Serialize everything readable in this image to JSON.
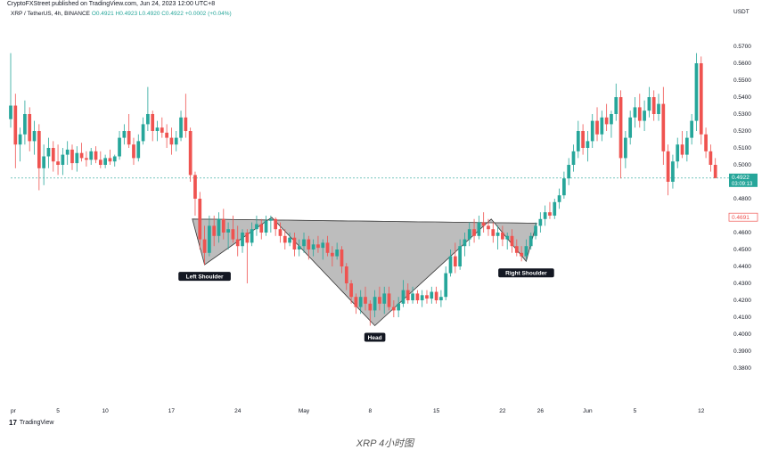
{
  "header": {
    "published": "CryptoFXStreet published on TradingView.com, Jun 24, 2023 12:00 UTC+8",
    "symbol": "XRP / TetherUS, 4h, BINANCE",
    "ohlc": "O0.4921 H0.4923 L0.4920 C0.4922 +0.0002 (+0.04%)",
    "currency": "USDT"
  },
  "brand": {
    "logo": "17",
    "name": "TradingView"
  },
  "caption": "XRP 4小时图",
  "colors": {
    "up": "#26a69a",
    "down": "#ef5350",
    "pattern_fill": "#b2b2b2",
    "neckline": "#555555"
  },
  "chart_data": {
    "type": "candlestick",
    "title": "XRP / TetherUS, 4h, BINANCE",
    "ylabel": "USDT",
    "ylim": [
      0.36,
      0.58
    ],
    "y_ticks": [
      "0.5700",
      "0.5600",
      "0.5500",
      "0.5400",
      "0.5300",
      "0.5200",
      "0.5100",
      "0.5000",
      "0.4800",
      "0.4700",
      "0.4600",
      "0.4500",
      "0.4400",
      "0.4300",
      "0.4200",
      "0.4100",
      "0.4000",
      "0.3900",
      "0.3800"
    ],
    "x_ticks": [
      "pr",
      "5",
      "10",
      "17",
      "24",
      "May",
      "8",
      "15",
      "22",
      "26",
      "Jun",
      "5",
      "12"
    ],
    "x_ticks_days": [
      0,
      5,
      10,
      17,
      24,
      31,
      38,
      45,
      52,
      56,
      61,
      66,
      73
    ],
    "x_range_days": [
      0,
      75
    ],
    "last_price": {
      "value": "0.4922",
      "countdown": "03:09:13"
    },
    "marker_price": {
      "value": "0.4691"
    },
    "annotations": [
      {
        "label": "Left Shoulder",
        "day": 20.5,
        "price": 0.441
      },
      {
        "label": "Head",
        "day": 38.5,
        "price": 0.405
      },
      {
        "label": "Right Shoulder",
        "day": 54.5,
        "price": 0.443
      }
    ],
    "pattern_points": [
      [
        19.2,
        0.468
      ],
      [
        20.5,
        0.441
      ],
      [
        27.6,
        0.469
      ],
      [
        38.5,
        0.405
      ],
      [
        50.8,
        0.468
      ],
      [
        54.5,
        0.443
      ],
      [
        55.6,
        0.4655
      ]
    ],
    "candles": [
      {
        "d": 0.0,
        "o": 0.527,
        "h": 0.566,
        "l": 0.522,
        "c": 0.535
      },
      {
        "d": 0.5,
        "o": 0.535,
        "h": 0.542,
        "l": 0.498,
        "c": 0.512
      },
      {
        "d": 1.0,
        "o": 0.512,
        "h": 0.522,
        "l": 0.502,
        "c": 0.518
      },
      {
        "d": 1.5,
        "o": 0.518,
        "h": 0.538,
        "l": 0.512,
        "c": 0.53
      },
      {
        "d": 2.0,
        "o": 0.53,
        "h": 0.534,
        "l": 0.508,
        "c": 0.514
      },
      {
        "d": 2.5,
        "o": 0.514,
        "h": 0.526,
        "l": 0.506,
        "c": 0.52
      },
      {
        "d": 3.0,
        "o": 0.52,
        "h": 0.524,
        "l": 0.485,
        "c": 0.498
      },
      {
        "d": 3.5,
        "o": 0.498,
        "h": 0.512,
        "l": 0.488,
        "c": 0.505
      },
      {
        "d": 4.0,
        "o": 0.505,
        "h": 0.516,
        "l": 0.498,
        "c": 0.51
      },
      {
        "d": 4.5,
        "o": 0.51,
        "h": 0.514,
        "l": 0.496,
        "c": 0.502
      },
      {
        "d": 5.0,
        "o": 0.502,
        "h": 0.512,
        "l": 0.494,
        "c": 0.5
      },
      {
        "d": 5.5,
        "o": 0.5,
        "h": 0.51,
        "l": 0.494,
        "c": 0.506
      },
      {
        "d": 6.0,
        "o": 0.506,
        "h": 0.514,
        "l": 0.5,
        "c": 0.509
      },
      {
        "d": 6.5,
        "o": 0.509,
        "h": 0.512,
        "l": 0.497,
        "c": 0.501
      },
      {
        "d": 7.0,
        "o": 0.501,
        "h": 0.511,
        "l": 0.496,
        "c": 0.507
      },
      {
        "d": 7.5,
        "o": 0.507,
        "h": 0.513,
        "l": 0.502,
        "c": 0.504
      },
      {
        "d": 8.0,
        "o": 0.504,
        "h": 0.508,
        "l": 0.499,
        "c": 0.503
      },
      {
        "d": 8.5,
        "o": 0.503,
        "h": 0.51,
        "l": 0.5,
        "c": 0.508
      },
      {
        "d": 9.0,
        "o": 0.508,
        "h": 0.511,
        "l": 0.501,
        "c": 0.503
      },
      {
        "d": 9.5,
        "o": 0.503,
        "h": 0.508,
        "l": 0.498,
        "c": 0.5
      },
      {
        "d": 10.0,
        "o": 0.5,
        "h": 0.506,
        "l": 0.498,
        "c": 0.504
      },
      {
        "d": 10.5,
        "o": 0.504,
        "h": 0.509,
        "l": 0.5,
        "c": 0.502
      },
      {
        "d": 11.0,
        "o": 0.502,
        "h": 0.506,
        "l": 0.499,
        "c": 0.505
      },
      {
        "d": 11.5,
        "o": 0.505,
        "h": 0.52,
        "l": 0.503,
        "c": 0.516
      },
      {
        "d": 12.0,
        "o": 0.516,
        "h": 0.524,
        "l": 0.512,
        "c": 0.52
      },
      {
        "d": 12.5,
        "o": 0.52,
        "h": 0.53,
        "l": 0.51,
        "c": 0.512
      },
      {
        "d": 13.0,
        "o": 0.512,
        "h": 0.516,
        "l": 0.5,
        "c": 0.504
      },
      {
        "d": 13.5,
        "o": 0.504,
        "h": 0.518,
        "l": 0.502,
        "c": 0.514
      },
      {
        "d": 14.0,
        "o": 0.514,
        "h": 0.528,
        "l": 0.512,
        "c": 0.524
      },
      {
        "d": 14.5,
        "o": 0.524,
        "h": 0.546,
        "l": 0.52,
        "c": 0.53
      },
      {
        "d": 15.0,
        "o": 0.53,
        "h": 0.532,
        "l": 0.514,
        "c": 0.52
      },
      {
        "d": 15.5,
        "o": 0.52,
        "h": 0.526,
        "l": 0.514,
        "c": 0.522
      },
      {
        "d": 16.0,
        "o": 0.522,
        "h": 0.528,
        "l": 0.516,
        "c": 0.519
      },
      {
        "d": 16.5,
        "o": 0.519,
        "h": 0.524,
        "l": 0.51,
        "c": 0.516
      },
      {
        "d": 17.0,
        "o": 0.516,
        "h": 0.522,
        "l": 0.506,
        "c": 0.512
      },
      {
        "d": 17.5,
        "o": 0.512,
        "h": 0.52,
        "l": 0.508,
        "c": 0.516
      },
      {
        "d": 18.0,
        "o": 0.516,
        "h": 0.532,
        "l": 0.514,
        "c": 0.528
      },
      {
        "d": 18.5,
        "o": 0.528,
        "h": 0.542,
        "l": 0.516,
        "c": 0.52
      },
      {
        "d": 19.0,
        "o": 0.52,
        "h": 0.522,
        "l": 0.49,
        "c": 0.494
      },
      {
        "d": 19.5,
        "o": 0.494,
        "h": 0.496,
        "l": 0.47,
        "c": 0.48
      },
      {
        "d": 20.0,
        "o": 0.48,
        "h": 0.484,
        "l": 0.45,
        "c": 0.456
      },
      {
        "d": 20.5,
        "o": 0.456,
        "h": 0.464,
        "l": 0.441,
        "c": 0.448
      },
      {
        "d": 21.0,
        "o": 0.448,
        "h": 0.47,
        "l": 0.446,
        "c": 0.464
      },
      {
        "d": 21.5,
        "o": 0.464,
        "h": 0.47,
        "l": 0.452,
        "c": 0.458
      },
      {
        "d": 22.0,
        "o": 0.458,
        "h": 0.472,
        "l": 0.454,
        "c": 0.468
      },
      {
        "d": 22.5,
        "o": 0.468,
        "h": 0.474,
        "l": 0.456,
        "c": 0.46
      },
      {
        "d": 23.0,
        "o": 0.46,
        "h": 0.466,
        "l": 0.45,
        "c": 0.462
      },
      {
        "d": 23.5,
        "o": 0.462,
        "h": 0.47,
        "l": 0.454,
        "c": 0.456
      },
      {
        "d": 24.0,
        "o": 0.456,
        "h": 0.464,
        "l": 0.446,
        "c": 0.452
      },
      {
        "d": 24.5,
        "o": 0.452,
        "h": 0.462,
        "l": 0.448,
        "c": 0.46
      },
      {
        "d": 25.0,
        "o": 0.46,
        "h": 0.462,
        "l": 0.43,
        "c": 0.454
      },
      {
        "d": 25.5,
        "o": 0.454,
        "h": 0.466,
        "l": 0.452,
        "c": 0.462
      },
      {
        "d": 26.0,
        "o": 0.462,
        "h": 0.47,
        "l": 0.458,
        "c": 0.465
      },
      {
        "d": 26.5,
        "o": 0.465,
        "h": 0.468,
        "l": 0.456,
        "c": 0.46
      },
      {
        "d": 27.0,
        "o": 0.46,
        "h": 0.47,
        "l": 0.458,
        "c": 0.467
      },
      {
        "d": 27.5,
        "o": 0.467,
        "h": 0.47,
        "l": 0.46,
        "c": 0.468
      },
      {
        "d": 28.0,
        "o": 0.468,
        "h": 0.469,
        "l": 0.458,
        "c": 0.462
      },
      {
        "d": 28.5,
        "o": 0.462,
        "h": 0.466,
        "l": 0.454,
        "c": 0.458
      },
      {
        "d": 29.0,
        "o": 0.458,
        "h": 0.462,
        "l": 0.45,
        "c": 0.454
      },
      {
        "d": 29.5,
        "o": 0.454,
        "h": 0.46,
        "l": 0.452,
        "c": 0.457
      },
      {
        "d": 30.0,
        "o": 0.457,
        "h": 0.46,
        "l": 0.446,
        "c": 0.45
      },
      {
        "d": 30.5,
        "o": 0.45,
        "h": 0.456,
        "l": 0.446,
        "c": 0.452
      },
      {
        "d": 31.0,
        "o": 0.452,
        "h": 0.46,
        "l": 0.448,
        "c": 0.456
      },
      {
        "d": 31.5,
        "o": 0.456,
        "h": 0.458,
        "l": 0.444,
        "c": 0.45
      },
      {
        "d": 32.0,
        "o": 0.45,
        "h": 0.456,
        "l": 0.446,
        "c": 0.453
      },
      {
        "d": 32.5,
        "o": 0.453,
        "h": 0.458,
        "l": 0.448,
        "c": 0.451
      },
      {
        "d": 33.0,
        "o": 0.451,
        "h": 0.456,
        "l": 0.444,
        "c": 0.454
      },
      {
        "d": 33.5,
        "o": 0.454,
        "h": 0.458,
        "l": 0.446,
        "c": 0.448
      },
      {
        "d": 34.0,
        "o": 0.448,
        "h": 0.452,
        "l": 0.44,
        "c": 0.446
      },
      {
        "d": 34.5,
        "o": 0.446,
        "h": 0.454,
        "l": 0.444,
        "c": 0.45
      },
      {
        "d": 35.0,
        "o": 0.45,
        "h": 0.452,
        "l": 0.436,
        "c": 0.44
      },
      {
        "d": 35.5,
        "o": 0.44,
        "h": 0.442,
        "l": 0.426,
        "c": 0.43
      },
      {
        "d": 36.0,
        "o": 0.43,
        "h": 0.432,
        "l": 0.418,
        "c": 0.422
      },
      {
        "d": 36.5,
        "o": 0.422,
        "h": 0.424,
        "l": 0.412,
        "c": 0.416
      },
      {
        "d": 37.0,
        "o": 0.416,
        "h": 0.426,
        "l": 0.412,
        "c": 0.422
      },
      {
        "d": 37.5,
        "o": 0.422,
        "h": 0.428,
        "l": 0.414,
        "c": 0.418
      },
      {
        "d": 38.0,
        "o": 0.418,
        "h": 0.42,
        "l": 0.405,
        "c": 0.414
      },
      {
        "d": 38.5,
        "o": 0.414,
        "h": 0.426,
        "l": 0.41,
        "c": 0.422
      },
      {
        "d": 39.0,
        "o": 0.422,
        "h": 0.428,
        "l": 0.414,
        "c": 0.418
      },
      {
        "d": 39.5,
        "o": 0.418,
        "h": 0.428,
        "l": 0.412,
        "c": 0.424
      },
      {
        "d": 40.0,
        "o": 0.424,
        "h": 0.428,
        "l": 0.414,
        "c": 0.416
      },
      {
        "d": 40.5,
        "o": 0.416,
        "h": 0.42,
        "l": 0.41,
        "c": 0.414
      },
      {
        "d": 41.0,
        "o": 0.414,
        "h": 0.422,
        "l": 0.41,
        "c": 0.418
      },
      {
        "d": 41.5,
        "o": 0.418,
        "h": 0.432,
        "l": 0.416,
        "c": 0.426
      },
      {
        "d": 42.0,
        "o": 0.426,
        "h": 0.43,
        "l": 0.418,
        "c": 0.42
      },
      {
        "d": 42.5,
        "o": 0.42,
        "h": 0.428,
        "l": 0.418,
        "c": 0.424
      },
      {
        "d": 43.0,
        "o": 0.424,
        "h": 0.426,
        "l": 0.418,
        "c": 0.42
      },
      {
        "d": 43.5,
        "o": 0.42,
        "h": 0.426,
        "l": 0.416,
        "c": 0.423
      },
      {
        "d": 44.0,
        "o": 0.423,
        "h": 0.426,
        "l": 0.418,
        "c": 0.421
      },
      {
        "d": 44.5,
        "o": 0.421,
        "h": 0.428,
        "l": 0.418,
        "c": 0.425
      },
      {
        "d": 45.0,
        "o": 0.425,
        "h": 0.428,
        "l": 0.418,
        "c": 0.42
      },
      {
        "d": 45.5,
        "o": 0.42,
        "h": 0.426,
        "l": 0.416,
        "c": 0.422
      },
      {
        "d": 46.0,
        "o": 0.422,
        "h": 0.44,
        "l": 0.42,
        "c": 0.436
      },
      {
        "d": 46.5,
        "o": 0.436,
        "h": 0.45,
        "l": 0.434,
        "c": 0.446
      },
      {
        "d": 47.0,
        "o": 0.446,
        "h": 0.454,
        "l": 0.436,
        "c": 0.44
      },
      {
        "d": 47.5,
        "o": 0.44,
        "h": 0.456,
        "l": 0.438,
        "c": 0.452
      },
      {
        "d": 48.0,
        "o": 0.452,
        "h": 0.46,
        "l": 0.446,
        "c": 0.456
      },
      {
        "d": 48.5,
        "o": 0.456,
        "h": 0.466,
        "l": 0.452,
        "c": 0.462
      },
      {
        "d": 49.0,
        "o": 0.462,
        "h": 0.468,
        "l": 0.454,
        "c": 0.458
      },
      {
        "d": 49.5,
        "o": 0.458,
        "h": 0.47,
        "l": 0.456,
        "c": 0.466
      },
      {
        "d": 50.0,
        "o": 0.466,
        "h": 0.472,
        "l": 0.46,
        "c": 0.464
      },
      {
        "d": 50.5,
        "o": 0.464,
        "h": 0.468,
        "l": 0.458,
        "c": 0.462
      },
      {
        "d": 51.0,
        "o": 0.462,
        "h": 0.466,
        "l": 0.454,
        "c": 0.458
      },
      {
        "d": 51.5,
        "o": 0.458,
        "h": 0.464,
        "l": 0.45,
        "c": 0.46
      },
      {
        "d": 52.0,
        "o": 0.46,
        "h": 0.464,
        "l": 0.452,
        "c": 0.456
      },
      {
        "d": 52.5,
        "o": 0.456,
        "h": 0.46,
        "l": 0.45,
        "c": 0.458
      },
      {
        "d": 53.0,
        "o": 0.458,
        "h": 0.462,
        "l": 0.448,
        "c": 0.452
      },
      {
        "d": 53.5,
        "o": 0.452,
        "h": 0.456,
        "l": 0.446,
        "c": 0.448
      },
      {
        "d": 54.0,
        "o": 0.448,
        "h": 0.452,
        "l": 0.443,
        "c": 0.446
      },
      {
        "d": 54.5,
        "o": 0.446,
        "h": 0.456,
        "l": 0.444,
        "c": 0.452
      },
      {
        "d": 55.0,
        "o": 0.452,
        "h": 0.46,
        "l": 0.45,
        "c": 0.458
      },
      {
        "d": 55.5,
        "o": 0.458,
        "h": 0.466,
        "l": 0.456,
        "c": 0.464
      },
      {
        "d": 56.0,
        "o": 0.464,
        "h": 0.472,
        "l": 0.46,
        "c": 0.468
      },
      {
        "d": 56.5,
        "o": 0.468,
        "h": 0.476,
        "l": 0.464,
        "c": 0.472
      },
      {
        "d": 57.0,
        "o": 0.472,
        "h": 0.478,
        "l": 0.468,
        "c": 0.47
      },
      {
        "d": 57.5,
        "o": 0.47,
        "h": 0.48,
        "l": 0.468,
        "c": 0.478
      },
      {
        "d": 58.0,
        "o": 0.478,
        "h": 0.486,
        "l": 0.474,
        "c": 0.482
      },
      {
        "d": 58.5,
        "o": 0.482,
        "h": 0.496,
        "l": 0.48,
        "c": 0.492
      },
      {
        "d": 59.0,
        "o": 0.492,
        "h": 0.504,
        "l": 0.488,
        "c": 0.5
      },
      {
        "d": 59.5,
        "o": 0.5,
        "h": 0.512,
        "l": 0.496,
        "c": 0.508
      },
      {
        "d": 60.0,
        "o": 0.508,
        "h": 0.526,
        "l": 0.504,
        "c": 0.52
      },
      {
        "d": 60.5,
        "o": 0.52,
        "h": 0.524,
        "l": 0.506,
        "c": 0.51
      },
      {
        "d": 61.0,
        "o": 0.51,
        "h": 0.52,
        "l": 0.502,
        "c": 0.514
      },
      {
        "d": 61.5,
        "o": 0.514,
        "h": 0.53,
        "l": 0.51,
        "c": 0.526
      },
      {
        "d": 62.0,
        "o": 0.526,
        "h": 0.534,
        "l": 0.514,
        "c": 0.518
      },
      {
        "d": 62.5,
        "o": 0.518,
        "h": 0.532,
        "l": 0.514,
        "c": 0.528
      },
      {
        "d": 63.0,
        "o": 0.528,
        "h": 0.536,
        "l": 0.52,
        "c": 0.524
      },
      {
        "d": 63.5,
        "o": 0.524,
        "h": 0.532,
        "l": 0.516,
        "c": 0.53
      },
      {
        "d": 64.0,
        "o": 0.53,
        "h": 0.548,
        "l": 0.526,
        "c": 0.54
      },
      {
        "d": 64.5,
        "o": 0.54,
        "h": 0.544,
        "l": 0.492,
        "c": 0.504
      },
      {
        "d": 65.0,
        "o": 0.504,
        "h": 0.52,
        "l": 0.498,
        "c": 0.516
      },
      {
        "d": 65.5,
        "o": 0.516,
        "h": 0.532,
        "l": 0.512,
        "c": 0.528
      },
      {
        "d": 66.0,
        "o": 0.528,
        "h": 0.54,
        "l": 0.522,
        "c": 0.534
      },
      {
        "d": 66.5,
        "o": 0.534,
        "h": 0.542,
        "l": 0.522,
        "c": 0.526
      },
      {
        "d": 67.0,
        "o": 0.526,
        "h": 0.538,
        "l": 0.52,
        "c": 0.532
      },
      {
        "d": 67.5,
        "o": 0.532,
        "h": 0.546,
        "l": 0.528,
        "c": 0.54
      },
      {
        "d": 68.0,
        "o": 0.54,
        "h": 0.544,
        "l": 0.526,
        "c": 0.53
      },
      {
        "d": 68.5,
        "o": 0.53,
        "h": 0.542,
        "l": 0.526,
        "c": 0.536
      },
      {
        "d": 69.0,
        "o": 0.536,
        "h": 0.546,
        "l": 0.5,
        "c": 0.508
      },
      {
        "d": 69.5,
        "o": 0.508,
        "h": 0.512,
        "l": 0.482,
        "c": 0.49
      },
      {
        "d": 70.0,
        "o": 0.49,
        "h": 0.506,
        "l": 0.486,
        "c": 0.502
      },
      {
        "d": 70.5,
        "o": 0.502,
        "h": 0.516,
        "l": 0.498,
        "c": 0.512
      },
      {
        "d": 71.0,
        "o": 0.512,
        "h": 0.52,
        "l": 0.504,
        "c": 0.506
      },
      {
        "d": 71.5,
        "o": 0.506,
        "h": 0.52,
        "l": 0.502,
        "c": 0.516
      },
      {
        "d": 72.0,
        "o": 0.516,
        "h": 0.53,
        "l": 0.512,
        "c": 0.526
      },
      {
        "d": 72.5,
        "o": 0.526,
        "h": 0.566,
        "l": 0.52,
        "c": 0.56
      },
      {
        "d": 73.0,
        "o": 0.56,
        "h": 0.564,
        "l": 0.512,
        "c": 0.518
      },
      {
        "d": 73.5,
        "o": 0.518,
        "h": 0.522,
        "l": 0.504,
        "c": 0.508
      },
      {
        "d": 74.0,
        "o": 0.508,
        "h": 0.512,
        "l": 0.496,
        "c": 0.5
      },
      {
        "d": 74.5,
        "o": 0.5,
        "h": 0.504,
        "l": 0.492,
        "c": 0.4922
      }
    ]
  }
}
